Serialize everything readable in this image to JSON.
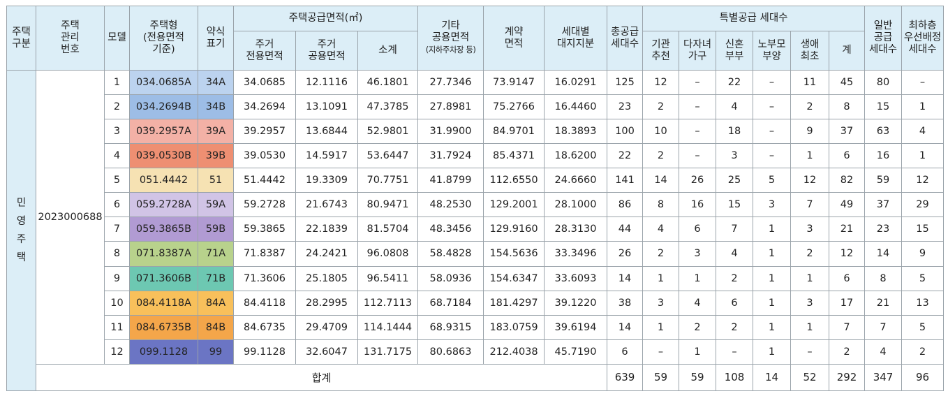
{
  "headers": {
    "house_type_group": "주택\n구분",
    "mgmt_no": "주택\n관리\n번호",
    "model": "모델",
    "house_type": "주택형\n(전용면적\n기준)",
    "abbr": "약식\n표기",
    "supply_area": "주택공급면적(㎡)",
    "residential_exclusive": "주거\n전용면적",
    "residential_common": "주거\n공용면적",
    "subtotal": "소계",
    "other_common": "기타\n공용면적",
    "other_common_note": "(지하주차장 등)",
    "contract_area": "계약\n면적",
    "land_share": "세대별\n대지지분",
    "total_supply": "총공급\n세대수",
    "special_supply": "특별공급 세대수",
    "institution": "기관\n추천",
    "multichild": "다자녀\n가구",
    "newlywed": "신혼\n부부",
    "elderly": "노부모\n부양",
    "first_time": "생애\n최초",
    "special_total": "계",
    "general_supply": "일반\n공급\n세대수",
    "lowest_floor": "최하층\n우선배정\n세대수"
  },
  "group_label": [
    "민",
    "영",
    "주",
    "택"
  ],
  "mgmt_number": "2023000688",
  "rows": [
    {
      "model": "1",
      "type": "034.0685A",
      "abbr": "34A",
      "color": "#bcd3ef",
      "excl": "34.0685",
      "comm": "12.1116",
      "sub": "46.1801",
      "other": "27.7346",
      "contract": "73.9147",
      "land": "16.0291",
      "total": "125",
      "inst": "12",
      "multi": "–",
      "newly": "22",
      "elder": "–",
      "first": "11",
      "sp": "45",
      "gen": "80",
      "low": "–"
    },
    {
      "model": "2",
      "type": "034.2694B",
      "abbr": "34B",
      "color": "#9dbde6",
      "excl": "34.2694",
      "comm": "13.1091",
      "sub": "47.3785",
      "other": "27.8981",
      "contract": "75.2766",
      "land": "16.4460",
      "total": "23",
      "inst": "2",
      "multi": "–",
      "newly": "4",
      "elder": "–",
      "first": "2",
      "sp": "8",
      "gen": "15",
      "low": "1"
    },
    {
      "model": "3",
      "type": "039.2957A",
      "abbr": "39A",
      "color": "#f3b1a6",
      "excl": "39.2957",
      "comm": "13.6844",
      "sub": "52.9801",
      "other": "31.9900",
      "contract": "84.9701",
      "land": "18.3893",
      "total": "100",
      "inst": "10",
      "multi": "–",
      "newly": "18",
      "elder": "–",
      "first": "9",
      "sp": "37",
      "gen": "63",
      "low": "4"
    },
    {
      "model": "4",
      "type": "039.0530B",
      "abbr": "39B",
      "color": "#ee8f72",
      "excl": "39.0530",
      "comm": "14.5917",
      "sub": "53.6447",
      "other": "31.7924",
      "contract": "85.4371",
      "land": "18.6200",
      "total": "22",
      "inst": "2",
      "multi": "–",
      "newly": "3",
      "elder": "–",
      "first": "1",
      "sp": "6",
      "gen": "16",
      "low": "1"
    },
    {
      "model": "5",
      "type": "051.4442",
      "abbr": "51",
      "color": "#f6e2b3",
      "excl": "51.4442",
      "comm": "19.3309",
      "sub": "70.7751",
      "other": "41.8799",
      "contract": "112.6550",
      "land": "24.6660",
      "total": "141",
      "inst": "14",
      "multi": "26",
      "newly": "25",
      "elder": "5",
      "first": "12",
      "sp": "82",
      "gen": "59",
      "low": "12"
    },
    {
      "model": "6",
      "type": "059.2728A",
      "abbr": "59A",
      "color": "#d1c4e6",
      "excl": "59.2728",
      "comm": "21.6743",
      "sub": "80.9471",
      "other": "48.2530",
      "contract": "129.2001",
      "land": "28.1000",
      "total": "86",
      "inst": "8",
      "multi": "16",
      "newly": "15",
      "elder": "3",
      "first": "7",
      "sp": "49",
      "gen": "37",
      "low": "29"
    },
    {
      "model": "7",
      "type": "059.3865B",
      "abbr": "59B",
      "color": "#b19bd3",
      "excl": "59.3865",
      "comm": "22.1839",
      "sub": "81.5704",
      "other": "48.3456",
      "contract": "129.9160",
      "land": "28.3130",
      "total": "44",
      "inst": "4",
      "multi": "6",
      "newly": "7",
      "elder": "1",
      "first": "3",
      "sp": "21",
      "gen": "23",
      "low": "15"
    },
    {
      "model": "8",
      "type": "071.8387A",
      "abbr": "71A",
      "color": "#b8d28c",
      "excl": "71.8387",
      "comm": "24.2421",
      "sub": "96.0808",
      "other": "58.4828",
      "contract": "154.5636",
      "land": "33.3496",
      "total": "26",
      "inst": "2",
      "multi": "3",
      "newly": "4",
      "elder": "1",
      "first": "2",
      "sp": "12",
      "gen": "14",
      "low": "9"
    },
    {
      "model": "9",
      "type": "071.3606B",
      "abbr": "71B",
      "color": "#6dc8b2",
      "excl": "71.3606",
      "comm": "25.1805",
      "sub": "96.5411",
      "other": "58.0936",
      "contract": "154.6347",
      "land": "33.6093",
      "total": "14",
      "inst": "1",
      "multi": "1",
      "newly": "2",
      "elder": "1",
      "first": "1",
      "sp": "6",
      "gen": "8",
      "low": "5"
    },
    {
      "model": "10",
      "type": "084.4118A",
      "abbr": "84A",
      "color": "#f8c05b",
      "excl": "84.4118",
      "comm": "28.2995",
      "sub": "112.7113",
      "other": "68.7184",
      "contract": "181.4297",
      "land": "39.1220",
      "total": "38",
      "inst": "3",
      "multi": "4",
      "newly": "6",
      "elder": "1",
      "first": "3",
      "sp": "17",
      "gen": "21",
      "low": "13"
    },
    {
      "model": "11",
      "type": "084.6735B",
      "abbr": "84B",
      "color": "#f4a64a",
      "excl": "84.6735",
      "comm": "29.4709",
      "sub": "114.1444",
      "other": "68.9315",
      "contract": "183.0759",
      "land": "39.6194",
      "total": "14",
      "inst": "1",
      "multi": "2",
      "newly": "2",
      "elder": "1",
      "first": "1",
      "sp": "7",
      "gen": "7",
      "low": "5"
    },
    {
      "model": "12",
      "type": "099.1128",
      "abbr": "99",
      "color": "#6b75c4",
      "excl": "99.1128",
      "comm": "32.6047",
      "sub": "131.7175",
      "other": "80.6863",
      "contract": "212.4038",
      "land": "45.7190",
      "total": "6",
      "inst": "–",
      "multi": "1",
      "newly": "–",
      "elder": "1",
      "first": "–",
      "sp": "2",
      "gen": "4",
      "low": "2"
    }
  ],
  "totals": {
    "label": "합계",
    "total": "639",
    "inst": "59",
    "multi": "59",
    "newly": "108",
    "elder": "14",
    "first": "52",
    "sp": "292",
    "gen": "347",
    "low": "96"
  }
}
